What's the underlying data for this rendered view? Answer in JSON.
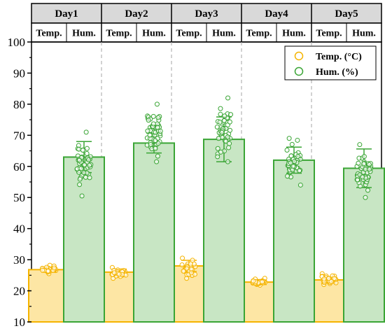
{
  "chart_data": {
    "type": "bar",
    "categories": [
      "Day1",
      "Day2",
      "Day3",
      "Day4",
      "Day5"
    ],
    "sub_headers": [
      "Temp.",
      "Hum."
    ],
    "ylim": [
      10,
      100
    ],
    "yticks": [
      10,
      20,
      30,
      40,
      50,
      60,
      70,
      80,
      90,
      100
    ],
    "series": [
      {
        "name": "Temp.  (°C)",
        "color": "#f5b400",
        "fill": "#fde6a4",
        "values": [
          26.8,
          26.0,
          28.0,
          22.8,
          23.5
        ],
        "sd": [
          0.8,
          1.0,
          1.8,
          0.8,
          1.0
        ],
        "range": [
          [
            25.5,
            28.2
          ],
          [
            24.0,
            27.5
          ],
          [
            24.0,
            30.5
          ],
          [
            21.8,
            24.0
          ],
          [
            22.0,
            25.5
          ]
        ]
      },
      {
        "name": "Hum.  (%)",
        "color": "#3aa535",
        "fill": "#c8e6c4",
        "values": [
          63.0,
          67.5,
          68.7,
          62.0,
          59.4
        ],
        "sd": [
          5.0,
          3.2,
          7.2,
          4.2,
          6.2
        ],
        "range": [
          [
            50.5,
            71.0
          ],
          [
            61.5,
            80.0
          ],
          [
            61.5,
            82.0
          ],
          [
            54.0,
            69.0
          ],
          [
            50.0,
            67.0
          ]
        ]
      }
    ],
    "legend": {
      "placement": "top-right"
    },
    "grid": false
  }
}
